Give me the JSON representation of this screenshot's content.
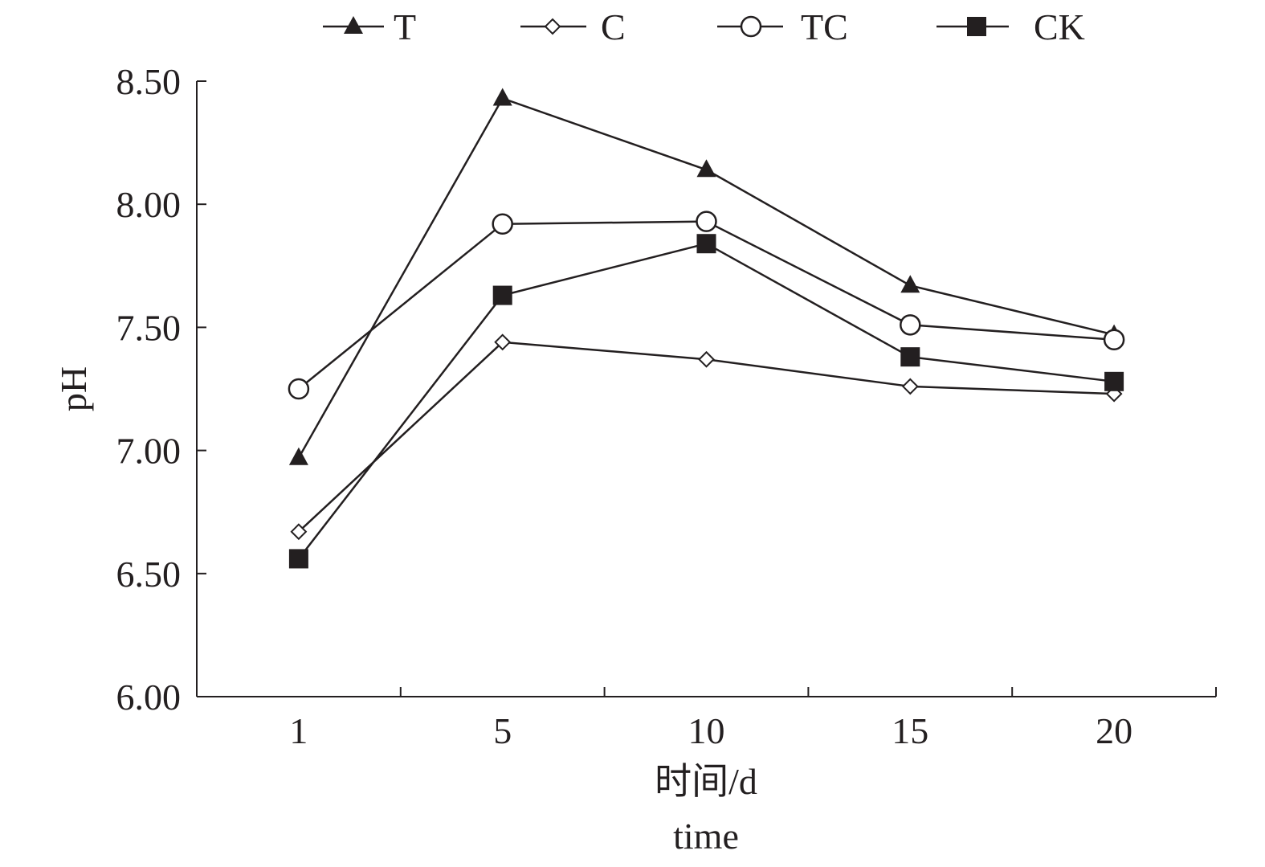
{
  "chart_data": {
    "type": "line",
    "title": "",
    "xlabel": "时间/d",
    "xlabel2": "time",
    "ylabel": "pH",
    "categories": [
      "1",
      "5",
      "10",
      "15",
      "20"
    ],
    "ylim": [
      6.0,
      8.5
    ],
    "yticks": [
      "6.00",
      "6.50",
      "7.00",
      "7.50",
      "8.00",
      "8.50"
    ],
    "grid": false,
    "legend_position": "top",
    "series": [
      {
        "name": "T",
        "marker": "filled-triangle",
        "values": [
          6.97,
          8.43,
          8.14,
          7.67,
          7.47
        ]
      },
      {
        "name": "C",
        "marker": "open-diamond",
        "values": [
          6.67,
          7.44,
          7.37,
          7.26,
          7.23
        ]
      },
      {
        "name": "TC",
        "marker": "open-circle",
        "values": [
          7.25,
          7.92,
          7.93,
          7.51,
          7.45
        ]
      },
      {
        "name": "CK",
        "marker": "filled-square",
        "values": [
          6.56,
          7.63,
          7.84,
          7.38,
          7.28
        ]
      }
    ],
    "colors": {
      "line": "#231f20"
    }
  }
}
